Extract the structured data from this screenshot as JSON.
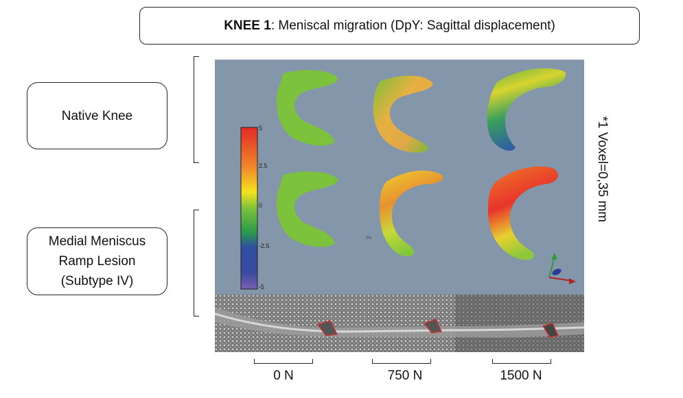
{
  "title": {
    "bold": "KNEE 1",
    "rest": ": Meniscal migration (DpY: Sagittal displacement)"
  },
  "rows": [
    {
      "label_lines": [
        "Native Knee"
      ]
    },
    {
      "label_lines": [
        "Medial Meniscus",
        "Ramp Lesion",
        "(Subtype IV)"
      ]
    }
  ],
  "side_note": "*1 Voxel=0,35 mm",
  "colorbar": {
    "ticks": [
      "5",
      "2.5",
      "0",
      "-2.5",
      "-5"
    ],
    "stops": [
      "#e02a26",
      "#f08a2a",
      "#f5e21e",
      "#78c03a",
      "#2a9a4a",
      "#2f4fa0",
      "#3a4aa0",
      "#7a60b0"
    ]
  },
  "panel_label": "0N",
  "forces": [
    "0 N",
    "750 N",
    "1500 N"
  ],
  "colors": {
    "background": "#8496a9",
    "outline": "#222222"
  }
}
